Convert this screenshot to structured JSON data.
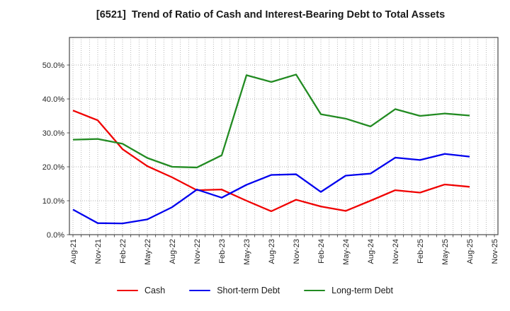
{
  "title": "[6521]  Trend of Ratio of Cash and Interest-Bearing Debt to Total Assets",
  "chart_data": {
    "type": "line",
    "title": "[6521]  Trend of Ratio of Cash and Interest-Bearing Debt to Total Assets",
    "categories": [
      "Aug-21",
      "Nov-21",
      "Feb-22",
      "May-22",
      "Aug-22",
      "Nov-22",
      "Feb-23",
      "May-23",
      "Aug-23",
      "Nov-23",
      "Feb-24",
      "May-24",
      "Aug-24",
      "Nov-24",
      "Feb-25",
      "May-25",
      "Aug-25",
      "Nov-25"
    ],
    "series": [
      {
        "name": "Cash",
        "color": "#f00000",
        "values": [
          36.6,
          33.7,
          25.2,
          20.2,
          16.9,
          13.1,
          13.3,
          10.0,
          6.9,
          10.3,
          8.3,
          7.0,
          10.0,
          13.1,
          12.4,
          14.8,
          14.1
        ]
      },
      {
        "name": "Short-term Debt",
        "color": "#0000ee",
        "values": [
          7.4,
          3.4,
          3.3,
          4.5,
          8.1,
          13.3,
          10.9,
          14.7,
          17.6,
          17.8,
          12.6,
          17.4,
          18.0,
          22.7,
          22.0,
          23.8,
          23.0
        ]
      },
      {
        "name": "Long-term Debt",
        "color": "#228b22",
        "values": [
          28.0,
          28.2,
          26.8,
          22.6,
          20.0,
          19.8,
          23.4,
          47.0,
          45.0,
          47.2,
          35.5,
          34.2,
          31.9,
          37.0,
          35.0,
          35.7,
          35.1
        ]
      }
    ],
    "y_axis": {
      "tick_labels": [
        "0.0%",
        "10.0%",
        "20.0%",
        "30.0%",
        "40.0%",
        "50.0%"
      ],
      "min": 0,
      "max": 58,
      "tick_step_percent": 10,
      "unit": "%"
    },
    "x_axis": {
      "minor_gridlines": "monthly",
      "label_rotation_deg": 90
    },
    "grid": {
      "style": "dotted",
      "color": "#a6a6a6"
    },
    "legend_position": "bottom",
    "note_last_category_has_no_data": "Nov-25"
  }
}
